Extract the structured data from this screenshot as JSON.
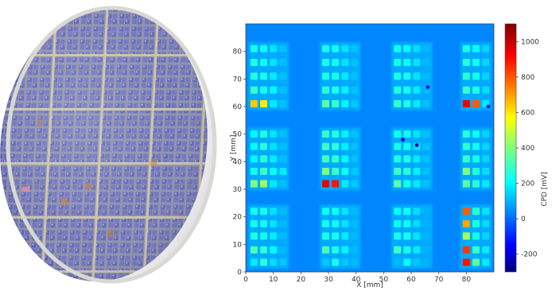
{
  "figure": {
    "left_panel": "wafer-photo",
    "right_panel": "heatmap"
  },
  "chart_data": {
    "type": "heatmap",
    "title": "",
    "xlabel": "X [mm]",
    "ylabel": "Y [mm]",
    "xlim": [
      0,
      90
    ],
    "ylim": [
      0,
      90
    ],
    "x_ticks": [
      "0",
      "10",
      "20",
      "30",
      "40",
      "50",
      "60",
      "70",
      "80"
    ],
    "y_ticks": [
      "0",
      "10",
      "20",
      "30",
      "40",
      "50",
      "60",
      "70",
      "80"
    ],
    "colorbar": {
      "label": "CPD [mV]",
      "min": -300,
      "max": 1100,
      "ticks": [
        "-200",
        "0",
        "200",
        "400",
        "600",
        "800",
        "1000"
      ],
      "colormap": "jet"
    },
    "background_value": 60,
    "dark_spots": [
      {
        "x": 62,
        "y": 46,
        "value": -250
      },
      {
        "x": 57,
        "y": 48,
        "value": -150
      },
      {
        "x": 66,
        "y": 67,
        "value": -120
      },
      {
        "x": 88,
        "y": 60,
        "value": -100
      }
    ],
    "blocks": [
      {
        "row": "bottom",
        "column": 1,
        "x_centers": [
          3,
          6.5,
          10,
          13.5
        ],
        "y_centers": [
          3.5,
          8,
          13,
          17.5,
          22
        ],
        "values": [
          [
            200,
            280,
            180,
            150
          ],
          [
            330,
            280,
            220,
            130
          ],
          [
            260,
            250,
            200,
            130
          ],
          [
            250,
            250,
            190,
            130
          ],
          [
            240,
            250,
            190,
            130
          ]
        ]
      },
      {
        "row": "bottom",
        "column": 2,
        "x_centers": [
          29,
          32.5,
          36,
          39.5
        ],
        "y_centers": [
          3.5,
          8,
          13,
          17.5,
          22
        ],
        "values": [
          [
            150,
            250,
            150,
            130
          ],
          [
            330,
            260,
            210,
            130
          ],
          [
            260,
            250,
            200,
            130
          ],
          [
            250,
            240,
            190,
            130
          ],
          [
            240,
            240,
            190,
            130
          ]
        ]
      },
      {
        "row": "bottom",
        "column": 3,
        "x_centers": [
          55,
          58.5,
          62,
          65.5
        ],
        "y_centers": [
          3.5,
          8,
          13,
          17.5,
          22
        ],
        "values": [
          [
            130,
            230,
            150,
            120
          ],
          [
            320,
            250,
            200,
            120
          ],
          [
            250,
            250,
            190,
            120
          ],
          [
            240,
            240,
            180,
            120
          ],
          [
            230,
            240,
            180,
            120
          ]
        ]
      },
      {
        "row": "bottom",
        "column": 4,
        "x_centers": [
          80,
          83.5,
          87
        ],
        "y_centers": [
          3.5,
          8,
          13,
          17.5,
          22
        ],
        "values": [
          [
            900,
            350,
            200
          ],
          [
            850,
            300,
            200
          ],
          [
            450,
            250,
            170
          ],
          [
            700,
            260,
            180
          ],
          [
            800,
            280,
            190
          ]
        ]
      },
      {
        "row": "middle",
        "column": 1,
        "x_centers": [
          3,
          6.5,
          10,
          13.5
        ],
        "y_centers": [
          32,
          36.5,
          41,
          45.5,
          50
        ],
        "values": [
          [
            400,
            450,
            200,
            140
          ],
          [
            250,
            300,
            230,
            200
          ],
          [
            220,
            280,
            200,
            140
          ],
          [
            230,
            270,
            190,
            140
          ],
          [
            220,
            260,
            190,
            140
          ]
        ]
      },
      {
        "row": "middle",
        "column": 2,
        "x_centers": [
          29,
          32.5,
          36,
          39.5
        ],
        "y_centers": [
          32,
          36.5,
          41,
          45.5,
          50
        ],
        "values": [
          [
            950,
            900,
            200,
            150
          ],
          [
            400,
            300,
            240,
            150
          ],
          [
            320,
            290,
            220,
            140
          ],
          [
            310,
            280,
            210,
            140
          ],
          [
            300,
            270,
            210,
            140
          ]
        ]
      },
      {
        "row": "middle",
        "column": 3,
        "x_centers": [
          55,
          58.5,
          62,
          65.5
        ],
        "y_centers": [
          32,
          36.5,
          41,
          45.5,
          50
        ],
        "values": [
          [
            350,
            250,
            200,
            140
          ],
          [
            300,
            280,
            210,
            140
          ],
          [
            260,
            260,
            200,
            140
          ],
          [
            250,
            250,
            190,
            140
          ],
          [
            240,
            240,
            190,
            140
          ]
        ]
      },
      {
        "row": "middle",
        "column": 4,
        "x_centers": [
          80,
          83.5,
          87
        ],
        "y_centers": [
          32,
          36.5,
          41,
          45.5,
          50
        ],
        "values": [
          [
            350,
            280,
            200
          ],
          [
            400,
            270,
            180
          ],
          [
            300,
            250,
            170
          ],
          [
            290,
            240,
            170
          ],
          [
            280,
            240,
            170
          ]
        ]
      },
      {
        "row": "top",
        "column": 1,
        "x_centers": [
          3,
          6.5,
          10,
          13.5
        ],
        "y_centers": [
          61,
          66,
          71,
          76,
          81
        ],
        "values": [
          [
            650,
            600,
            200,
            140
          ],
          [
            300,
            250,
            220,
            140
          ],
          [
            270,
            250,
            200,
            140
          ],
          [
            260,
            240,
            190,
            140
          ],
          [
            250,
            240,
            190,
            140
          ]
        ]
      },
      {
        "row": "top",
        "column": 2,
        "x_centers": [
          29,
          32.5,
          36,
          39.5
        ],
        "y_centers": [
          61,
          66,
          71,
          76,
          81
        ],
        "values": [
          [
            350,
            300,
            220,
            150
          ],
          [
            280,
            260,
            210,
            140
          ],
          [
            260,
            250,
            200,
            140
          ],
          [
            250,
            240,
            190,
            140
          ],
          [
            250,
            240,
            190,
            140
          ]
        ]
      },
      {
        "row": "top",
        "column": 3,
        "x_centers": [
          55,
          58.5,
          62,
          65.5
        ],
        "y_centers": [
          61,
          66,
          71,
          76,
          81
        ],
        "values": [
          [
            300,
            260,
            200,
            140
          ],
          [
            270,
            250,
            200,
            130
          ],
          [
            250,
            240,
            190,
            130
          ],
          [
            250,
            240,
            190,
            130
          ],
          [
            240,
            230,
            180,
            130
          ]
        ]
      },
      {
        "row": "top",
        "column": 4,
        "x_centers": [
          80,
          83.5,
          87
        ],
        "y_centers": [
          61,
          66,
          71,
          76,
          81
        ],
        "values": [
          [
            950,
            800,
            200
          ],
          [
            300,
            260,
            180
          ],
          [
            280,
            250,
            170
          ],
          [
            270,
            240,
            170
          ],
          [
            260,
            230,
            170
          ]
        ]
      }
    ]
  }
}
